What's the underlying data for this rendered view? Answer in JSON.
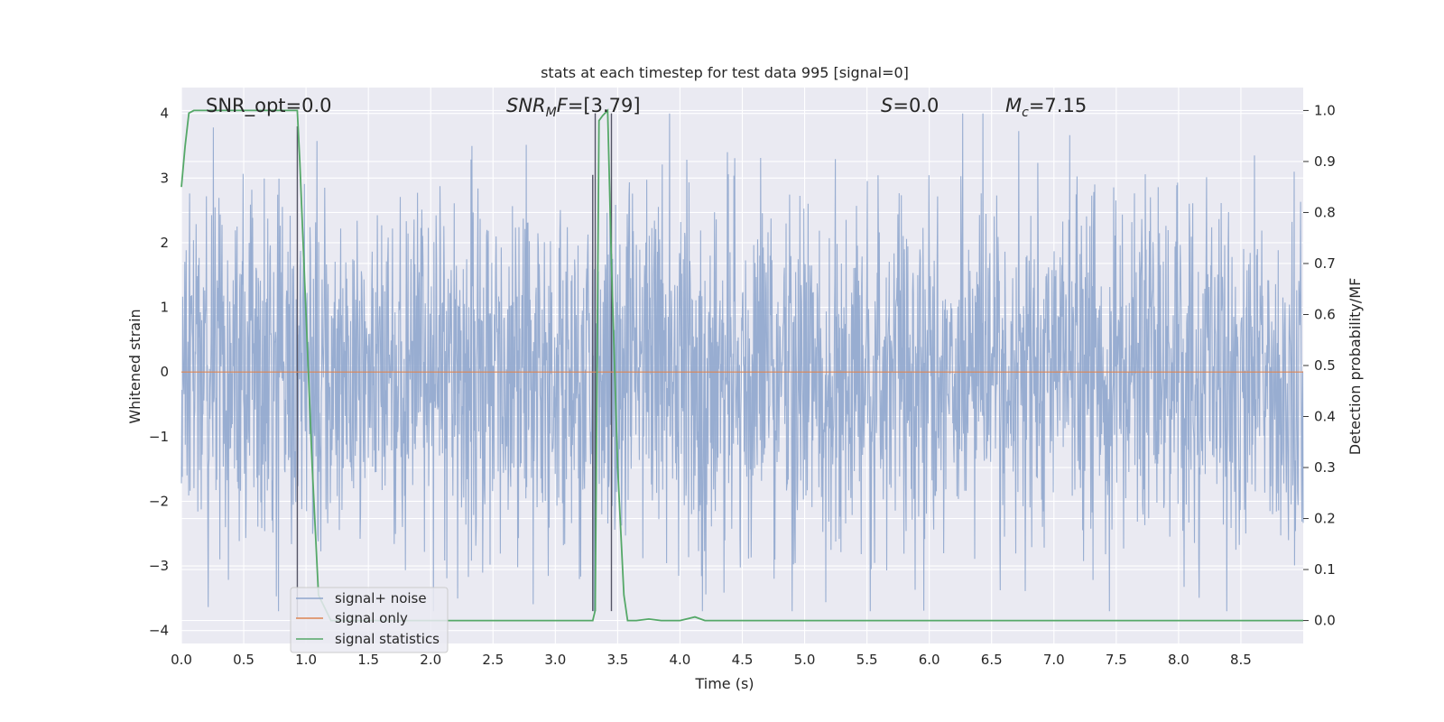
{
  "chart_data": {
    "type": "line",
    "title": "stats at each timestep for test data 995 [signal=0]",
    "xlabel": "Time (s)",
    "ylabel": "Whitened strain",
    "ylabel_right": "Detection probability/MF",
    "xlim": [
      0.0,
      9.0
    ],
    "ylim": [
      -4.2,
      4.4
    ],
    "ylim_right": [
      -0.045,
      1.045
    ],
    "x_ticks": [
      "0.0",
      "0.5",
      "1.0",
      "1.5",
      "2.0",
      "2.5",
      "3.0",
      "3.5",
      "4.0",
      "4.5",
      "5.0",
      "5.5",
      "6.0",
      "6.5",
      "7.0",
      "7.5",
      "8.0",
      "8.5"
    ],
    "y_ticks": [
      "4",
      "3",
      "2",
      "1",
      "0",
      "−1",
      "−2",
      "−3",
      "−4"
    ],
    "y_ticks_right": [
      "1.0",
      "0.9",
      "0.8",
      "0.7",
      "0.6",
      "0.5",
      "0.4",
      "0.3",
      "0.2",
      "0.1",
      "0.0"
    ],
    "grid": true,
    "legend_position": "lower-left",
    "annotations": {
      "snr_opt": "SNR_opt=0.0",
      "snr_mf_var": "SNR",
      "snr_mf_sub": "M",
      "snr_mf_f": "F",
      "snr_mf_value": "=[3.79]",
      "s_var": "S",
      "s_value": "=0.0",
      "mc_var": "M",
      "mc_sub": "c",
      "mc_value": "=7.15"
    },
    "series": [
      {
        "name": "signal+ noise",
        "color": "#8fa6cd",
        "description_of_shape": "noise",
        "approx_envelope": [
          -3.7,
          4.0
        ],
        "typical_amplitude": 2.5
      },
      {
        "name": "signal only",
        "color": "#dd8452",
        "x": [
          0.0,
          9.0
        ],
        "y": [
          0.0,
          0.0
        ]
      },
      {
        "name": "signal statistics",
        "color": "#55a868",
        "axis": "right",
        "x": [
          0.0,
          0.03,
          0.06,
          0.1,
          0.2,
          0.4,
          0.6,
          0.8,
          0.93,
          0.95,
          1.0,
          1.05,
          1.1,
          1.2,
          1.5,
          1.8,
          2.0,
          2.5,
          3.0,
          3.2,
          3.3,
          3.32,
          3.35,
          3.38,
          3.42,
          3.45,
          3.5,
          3.55,
          3.58,
          3.65,
          3.75,
          3.85,
          4.0,
          4.12,
          4.2,
          4.3,
          5.0,
          6.0,
          7.0,
          8.0,
          9.0
        ],
        "y": [
          0.85,
          0.93,
          0.995,
          1.0,
          1.0,
          1.0,
          1.0,
          1.0,
          1.0,
          0.9,
          0.6,
          0.3,
          0.05,
          0.0,
          0.0,
          0.0,
          0.0,
          0.0,
          0.0,
          0.0,
          0.0,
          0.02,
          0.98,
          0.99,
          1.0,
          0.7,
          0.3,
          0.05,
          0.0,
          0.0,
          0.003,
          0.0,
          0.0,
          0.007,
          0.0,
          0.0,
          0.0,
          0.0,
          0.0,
          0.0,
          0.0
        ]
      }
    ],
    "vertical_lines": [
      {
        "x": 0.93,
        "y": [
          -3.8,
          3.8
        ],
        "color": "#555566"
      },
      {
        "x": 3.3,
        "y": [
          -3.7,
          3.05
        ],
        "color": "#555566"
      },
      {
        "x": 3.32,
        "y": [
          -3.7,
          4.0
        ],
        "color": "#555566"
      },
      {
        "x": 3.45,
        "y": [
          -3.7,
          4.0
        ],
        "color": "#555566"
      }
    ]
  }
}
